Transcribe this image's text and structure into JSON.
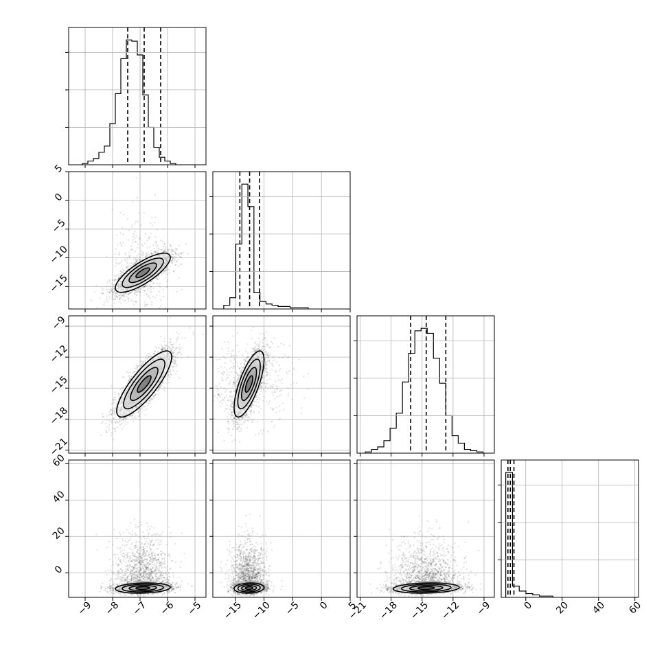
{
  "chart_data": {
    "type": "corner",
    "parameters": 4,
    "axes": {
      "p0": {
        "range": [
          -9.6,
          -4.6
        ],
        "ticks": [
          -9,
          -8,
          -7,
          -6,
          -5
        ],
        "tick_labels": [
          "−9",
          "−8",
          "−7",
          "−6",
          "−5"
        ]
      },
      "p1": {
        "range": [
          -18.9,
          5.0
        ],
        "ticks": [
          -15,
          -10,
          -5,
          0,
          5
        ],
        "tick_labels": [
          "−15",
          "−10",
          "−5",
          "0",
          "5"
        ]
      },
      "p2": {
        "range": [
          -21.3,
          -8.0
        ],
        "ticks": [
          -21,
          -18,
          -15,
          -12,
          -9
        ],
        "tick_labels": [
          "−21",
          "−18",
          "−15",
          "−12",
          "−9"
        ]
      },
      "p3": {
        "range": [
          -13.5,
          62.0
        ],
        "ticks": [
          0,
          20,
          40,
          60
        ],
        "tick_labels": [
          "0",
          "20",
          "40",
          "60"
        ]
      }
    },
    "quantiles": {
      "p0": [
        -7.45,
        -6.85,
        -6.25
      ],
      "p1": [
        -14.2,
        -12.5,
        -10.8
      ],
      "p2": [
        -16.1,
        -14.6,
        -12.7
      ],
      "p3": [
        -9.8,
        -8.5,
        -6.5
      ]
    },
    "histograms": [
      {
        "param": "p0",
        "start": -9.1,
        "step": 0.2,
        "counts": [
          1,
          3,
          5,
          10,
          15,
          33,
          57,
          85,
          100,
          99,
          88,
          56,
          30,
          14,
          6,
          3,
          1
        ]
      },
      {
        "param": "p1",
        "start": -17.0,
        "step": 1.05,
        "counts": [
          3,
          9,
          52,
          100,
          82,
          13,
          6,
          4,
          3,
          2,
          2,
          1,
          1,
          1
        ]
      },
      {
        "param": "p2",
        "start": -20.5,
        "step": 0.6,
        "counts": [
          1,
          3,
          5,
          10,
          20,
          32,
          57,
          80,
          98,
          100,
          96,
          76,
          56,
          30,
          14,
          8,
          3,
          2,
          1
        ]
      },
      {
        "param": "p3",
        "start": -11.0,
        "step": 3.7,
        "counts": [
          100,
          9,
          5,
          3,
          2,
          1,
          1
        ]
      }
    ],
    "scatter_clouds": [
      {
        "x": "p0",
        "y": "p1",
        "center": [
          -6.9,
          -12.6
        ],
        "sd": [
          0.5,
          1.7
        ],
        "corr": 0.78,
        "n": 2600,
        "outlier_n": 350,
        "outlier_sd": [
          0.55,
          5.0
        ]
      },
      {
        "x": "p0",
        "y": "p2",
        "center": [
          -6.85,
          -14.6
        ],
        "sd": [
          0.5,
          1.6
        ],
        "corr": 0.82,
        "n": 3000,
        "outlier_n": 0,
        "outlier_sd": [
          0,
          0
        ]
      },
      {
        "x": "p1",
        "y": "p2",
        "center": [
          -12.6,
          -14.6
        ],
        "sd": [
          1.3,
          1.6
        ],
        "corr": 0.72,
        "n": 2600,
        "outlier_n": 450,
        "outlier_sd": [
          4.0,
          2.0
        ]
      },
      {
        "x": "p0",
        "y": "p3",
        "center": [
          -6.9,
          -8.4
        ],
        "sd": [
          0.5,
          1.4
        ],
        "corr": 0.15,
        "n": 2300,
        "outlier_n": 1100,
        "outlier_sd": [
          0.5,
          14.0
        ]
      },
      {
        "x": "p1",
        "y": "p3",
        "center": [
          -12.6,
          -8.4
        ],
        "sd": [
          1.3,
          1.4
        ],
        "corr": 0.1,
        "n": 2300,
        "outlier_n": 1100,
        "outlier_sd": [
          1.6,
          12.0
        ]
      },
      {
        "x": "p2",
        "y": "p3",
        "center": [
          -14.6,
          -8.4
        ],
        "sd": [
          1.6,
          1.4
        ],
        "corr": 0.15,
        "n": 2300,
        "outlier_n": 1100,
        "outlier_sd": [
          1.6,
          12.0
        ]
      }
    ],
    "contour_levels_sigma": [
      0.5,
      1.0,
      1.5,
      2.0
    ],
    "grid": true,
    "colors": {
      "points": "#000000",
      "lines": "#000000",
      "grid": "#b0b0b0"
    }
  }
}
